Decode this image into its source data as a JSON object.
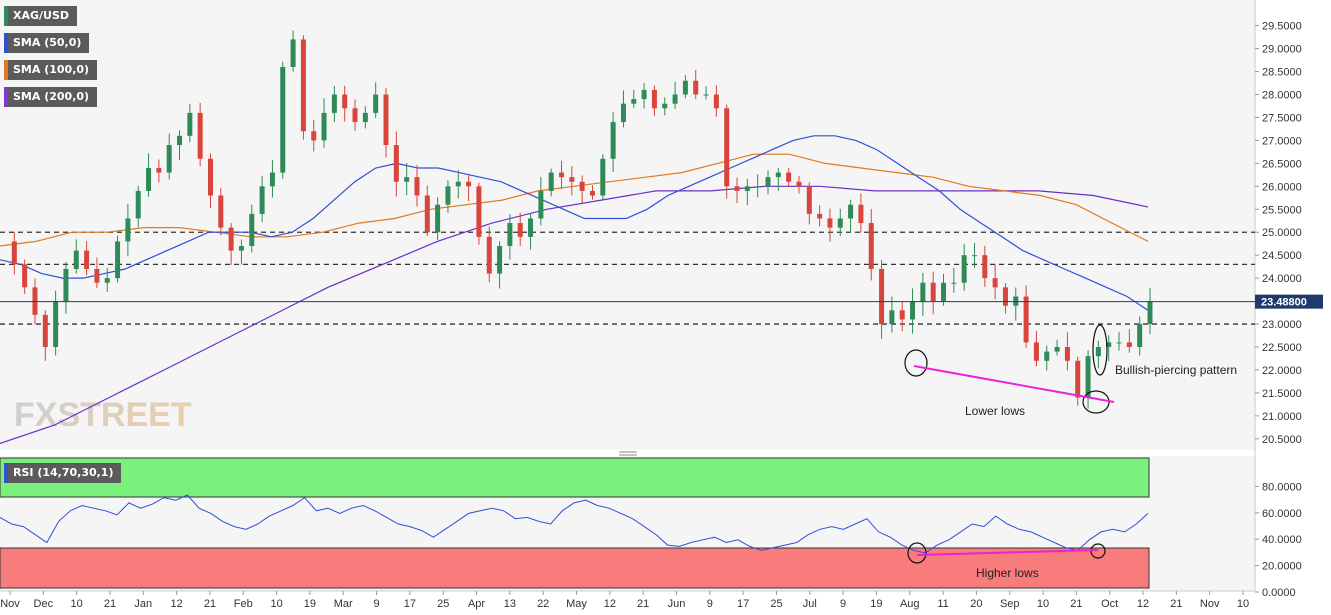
{
  "chart_data": {
    "type": "candlestick",
    "symbol": "XAG/USD",
    "legend": [
      {
        "label": "XAG/USD",
        "color": "#2e8b57"
      },
      {
        "label": "SMA (50,0)",
        "color": "#3050d8"
      },
      {
        "label": "SMA (100,0)",
        "color": "#e07a20"
      },
      {
        "label": "SMA (200,0)",
        "color": "#7a3cc8"
      }
    ],
    "last_price": "23.48800",
    "yticks": [
      "29.5000",
      "29.0000",
      "28.5000",
      "28.0000",
      "27.5000",
      "27.0000",
      "26.5000",
      "26.0000",
      "25.5000",
      "25.0000",
      "24.5000",
      "24.0000",
      "23.5000",
      "23.0000",
      "22.5000",
      "22.0000",
      "21.5000",
      "21.0000",
      "20.5000"
    ],
    "ytick_values": [
      29.5,
      29.0,
      28.5,
      28.0,
      27.5,
      27.0,
      26.5,
      26.0,
      25.5,
      25.0,
      24.5,
      24.0,
      23.5,
      23.0,
      22.5,
      22.0,
      21.5,
      21.0,
      20.5
    ],
    "ylim": [
      20.25,
      30.0
    ],
    "xticks": [
      "Nov",
      "Dec",
      "10",
      "21",
      "Jan",
      "12",
      "21",
      "Feb",
      "10",
      "19",
      "Mar",
      "9",
      "17",
      "25",
      "Apr",
      "13",
      "22",
      "May",
      "12",
      "21",
      "Jun",
      "9",
      "17",
      "25",
      "Jul",
      "9",
      "19",
      "Aug",
      "11",
      "20",
      "Sep",
      "10",
      "21",
      "Oct",
      "12",
      "21",
      "Nov",
      "10"
    ],
    "horizontal_levels": [
      25.0,
      24.3,
      23.0
    ],
    "current_level": 23.488,
    "close_series": [
      24.8,
      24.3,
      23.8,
      23.2,
      22.5,
      23.5,
      24.2,
      24.6,
      24.2,
      23.9,
      24.0,
      24.8,
      25.3,
      25.9,
      26.4,
      26.3,
      26.9,
      27.1,
      27.6,
      26.6,
      25.8,
      25.1,
      24.6,
      24.7,
      25.4,
      26.0,
      26.3,
      28.6,
      29.2,
      27.2,
      27.0,
      27.6,
      28.0,
      27.7,
      27.4,
      27.6,
      28.0,
      26.9,
      26.1,
      26.2,
      25.8,
      25.0,
      25.6,
      26.0,
      26.1,
      26.0,
      24.9,
      24.1,
      24.7,
      25.2,
      24.9,
      25.3,
      25.9,
      26.3,
      26.2,
      26.1,
      25.9,
      25.8,
      26.6,
      27.4,
      27.8,
      27.9,
      28.1,
      27.7,
      27.8,
      28.0,
      28.3,
      28.0,
      28.0,
      27.7,
      26.0,
      25.9,
      26.0,
      26.0,
      26.2,
      26.3,
      26.1,
      26.0,
      25.4,
      25.3,
      25.1,
      25.3,
      25.6,
      25.2,
      24.2,
      23.0,
      23.3,
      23.1,
      23.5,
      23.9,
      23.5,
      23.9,
      23.9,
      24.5,
      24.5,
      24.0,
      23.8,
      23.4,
      23.6,
      22.6,
      22.2,
      22.4,
      22.5,
      22.2,
      21.4,
      22.3,
      22.5,
      22.6,
      22.6,
      22.5,
      23.0,
      23.488
    ],
    "sma50_series": [
      24.4,
      24.3,
      24.1,
      24.0,
      24.0,
      24.1,
      24.2,
      24.4,
      24.6,
      24.8,
      25.0,
      25.0,
      25.0,
      24.9,
      25.0,
      25.3,
      25.7,
      26.1,
      26.4,
      26.5,
      26.4,
      26.4,
      26.3,
      26.2,
      26.1,
      25.9,
      25.7,
      25.5,
      25.3,
      25.3,
      25.3,
      25.5,
      25.8,
      26.0,
      26.2,
      26.4,
      26.6,
      26.8,
      27.0,
      27.1,
      27.1,
      27.0,
      26.8,
      26.5,
      26.2,
      25.9,
      25.5,
      25.2,
      24.9,
      24.6,
      24.4,
      24.2,
      24.0,
      23.8,
      23.6,
      23.3
    ],
    "sma100_series": [
      24.7,
      24.8,
      25.0,
      25.0,
      25.1,
      25.1,
      25.0,
      24.9,
      24.9,
      25.0,
      25.2,
      25.3,
      25.5,
      25.6,
      25.7,
      25.9,
      26.0,
      26.1,
      26.2,
      26.3,
      26.5,
      26.7,
      26.7,
      26.5,
      26.4,
      26.3,
      26.2,
      26.0,
      25.9,
      25.8,
      25.6,
      25.2,
      24.8
    ],
    "sma200_series": [
      20.4,
      20.8,
      21.4,
      22.0,
      22.6,
      23.2,
      23.8,
      24.3,
      24.8,
      25.2,
      25.5,
      25.7,
      25.9,
      25.9,
      26.0,
      26.0,
      25.9,
      25.9,
      25.9,
      25.9,
      25.8,
      25.55
    ],
    "rsi": {
      "label": "RSI (14,70,30,1)",
      "yticks": [
        "80.0000",
        "60.0000",
        "40.0000",
        "20.0000",
        "0.0000"
      ],
      "ytick_values": [
        80,
        60,
        40,
        20,
        0
      ],
      "ylim": [
        0,
        100
      ],
      "overbought": 70,
      "oversold": 30,
      "series": [
        55,
        50,
        48,
        42,
        36,
        52,
        60,
        64,
        62,
        60,
        57,
        66,
        62,
        65,
        70,
        68,
        72,
        62,
        58,
        52,
        48,
        46,
        50,
        56,
        60,
        64,
        70,
        60,
        62,
        58,
        62,
        64,
        60,
        55,
        50,
        48,
        45,
        40,
        46,
        52,
        58,
        60,
        62,
        60,
        54,
        55,
        52,
        50,
        60,
        66,
        68,
        64,
        62,
        58,
        54,
        48,
        42,
        34,
        33,
        36,
        38,
        40,
        36,
        38,
        33,
        30,
        32,
        34,
        36,
        42,
        46,
        48,
        46,
        50,
        54,
        44,
        40,
        34,
        30,
        28,
        34,
        38,
        44,
        50,
        48,
        56,
        50,
        46,
        44,
        40,
        36,
        32,
        30,
        38,
        44,
        46,
        44,
        50,
        58
      ]
    },
    "annotations": [
      {
        "text": "Bullish-piercing pattern"
      },
      {
        "text": "Lower lows"
      },
      {
        "text": "Higher lows"
      }
    ],
    "watermark": "FXSTREET"
  }
}
